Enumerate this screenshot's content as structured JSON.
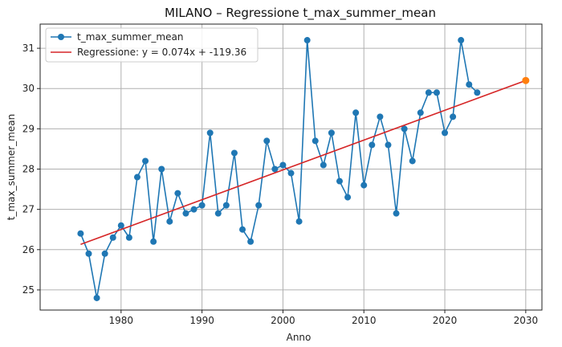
{
  "chart_data": {
    "type": "line",
    "title": "MILANO – Regressione t_max_summer_mean",
    "xlabel": "Anno",
    "ylabel": "t_max_summer_mean",
    "xlim": [
      1970,
      2032
    ],
    "ylim": [
      24.5,
      31.6
    ],
    "xticks": [
      "1980",
      "1990",
      "2000",
      "2010",
      "2020",
      "2030"
    ],
    "yticks": [
      "25",
      "26",
      "27",
      "28",
      "29",
      "30",
      "31"
    ],
    "grid": true,
    "legend_position": "top-left",
    "series": [
      {
        "name": "t_max_summer_mean",
        "color": "#1f77b4",
        "x": [
          1975,
          1976,
          1977,
          1978,
          1979,
          1980,
          1981,
          1982,
          1983,
          1984,
          1985,
          1986,
          1987,
          1988,
          1989,
          1990,
          1991,
          1992,
          1993,
          1994,
          1995,
          1996,
          1997,
          1998,
          1999,
          2000,
          2001,
          2002,
          2003,
          2004,
          2005,
          2006,
          2007,
          2008,
          2009,
          2010,
          2011,
          2012,
          2013,
          2014,
          2015,
          2016,
          2017,
          2018,
          2019,
          2020,
          2021,
          2022,
          2023,
          2024
        ],
        "values": [
          26.4,
          25.9,
          24.8,
          25.9,
          26.3,
          26.6,
          26.3,
          27.8,
          28.2,
          26.2,
          28.0,
          26.7,
          27.4,
          26.9,
          27.0,
          27.1,
          28.9,
          26.9,
          27.1,
          28.4,
          26.5,
          26.2,
          27.1,
          28.7,
          28.0,
          28.1,
          27.9,
          26.7,
          31.2,
          28.7,
          28.1,
          28.9,
          27.7,
          27.3,
          29.4,
          27.6,
          28.6,
          29.3,
          28.6,
          26.9,
          29.0,
          28.2,
          29.4,
          29.9,
          29.9,
          28.9,
          29.3,
          31.2,
          30.1,
          29.9
        ]
      },
      {
        "name": "Regressione: y = 0.074x + -119.36",
        "color": "#d62728",
        "x": [
          1975,
          2030
        ],
        "values": [
          26.13,
          30.2
        ]
      }
    ],
    "extra_point": {
      "x": 2030,
      "value": 30.2,
      "color": "#ff7f0e"
    }
  }
}
